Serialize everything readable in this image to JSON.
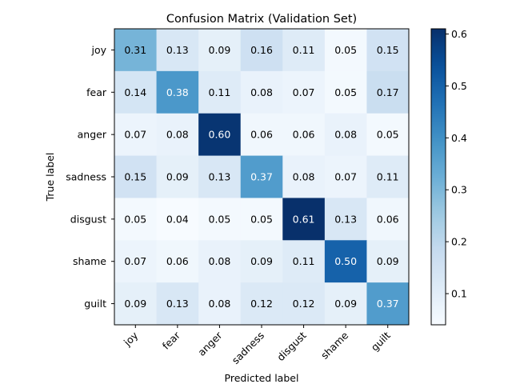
{
  "chart_data": {
    "type": "heatmap",
    "title": "Confusion Matrix (Validation Set)",
    "xlabel": "Predicted label",
    "ylabel": "True label",
    "x_categories": [
      "joy",
      "fear",
      "anger",
      "sadness",
      "disgust",
      "shame",
      "guilt"
    ],
    "y_categories": [
      "joy",
      "fear",
      "anger",
      "sadness",
      "disgust",
      "shame",
      "guilt"
    ],
    "values": [
      [
        0.31,
        0.13,
        0.09,
        0.16,
        0.11,
        0.05,
        0.15
      ],
      [
        0.14,
        0.38,
        0.11,
        0.08,
        0.07,
        0.05,
        0.17
      ],
      [
        0.07,
        0.08,
        0.6,
        0.06,
        0.06,
        0.08,
        0.05
      ],
      [
        0.15,
        0.09,
        0.13,
        0.37,
        0.08,
        0.07,
        0.11
      ],
      [
        0.05,
        0.04,
        0.05,
        0.05,
        0.61,
        0.13,
        0.06
      ],
      [
        0.07,
        0.06,
        0.08,
        0.09,
        0.11,
        0.5,
        0.09
      ],
      [
        0.09,
        0.13,
        0.08,
        0.12,
        0.12,
        0.09,
        0.37
      ]
    ],
    "value_labels": [
      [
        "0.31",
        "0.13",
        "0.09",
        "0.16",
        "0.11",
        "0.05",
        "0.15"
      ],
      [
        "0.14",
        "0.38",
        "0.11",
        "0.08",
        "0.07",
        "0.05",
        "0.17"
      ],
      [
        "0.07",
        "0.08",
        "0.60",
        "0.06",
        "0.06",
        "0.08",
        "0.05"
      ],
      [
        "0.15",
        "0.09",
        "0.13",
        "0.37",
        "0.08",
        "0.07",
        "0.11"
      ],
      [
        "0.05",
        "0.04",
        "0.05",
        "0.05",
        "0.61",
        "0.13",
        "0.06"
      ],
      [
        "0.07",
        "0.06",
        "0.08",
        "0.09",
        "0.11",
        "0.50",
        "0.09"
      ],
      [
        "0.09",
        "0.13",
        "0.08",
        "0.12",
        "0.12",
        "0.09",
        "0.37"
      ]
    ],
    "colormap": "Blues",
    "colormap_stops": [
      "#f7fbff",
      "#deebf7",
      "#c6dbef",
      "#9ecae1",
      "#6baed6",
      "#4292c6",
      "#2171b5",
      "#08519c",
      "#08306b"
    ],
    "vmin": 0.04,
    "vmax": 0.61,
    "colorbar_ticks": [
      0.1,
      0.2,
      0.3,
      0.4,
      0.5,
      0.6
    ],
    "colorbar_tick_labels": [
      "0.1",
      "0.2",
      "0.3",
      "0.4",
      "0.5",
      "0.6"
    ],
    "text_color_dark": "#000000",
    "text_color_light": "#ffffff",
    "grid": false
  }
}
